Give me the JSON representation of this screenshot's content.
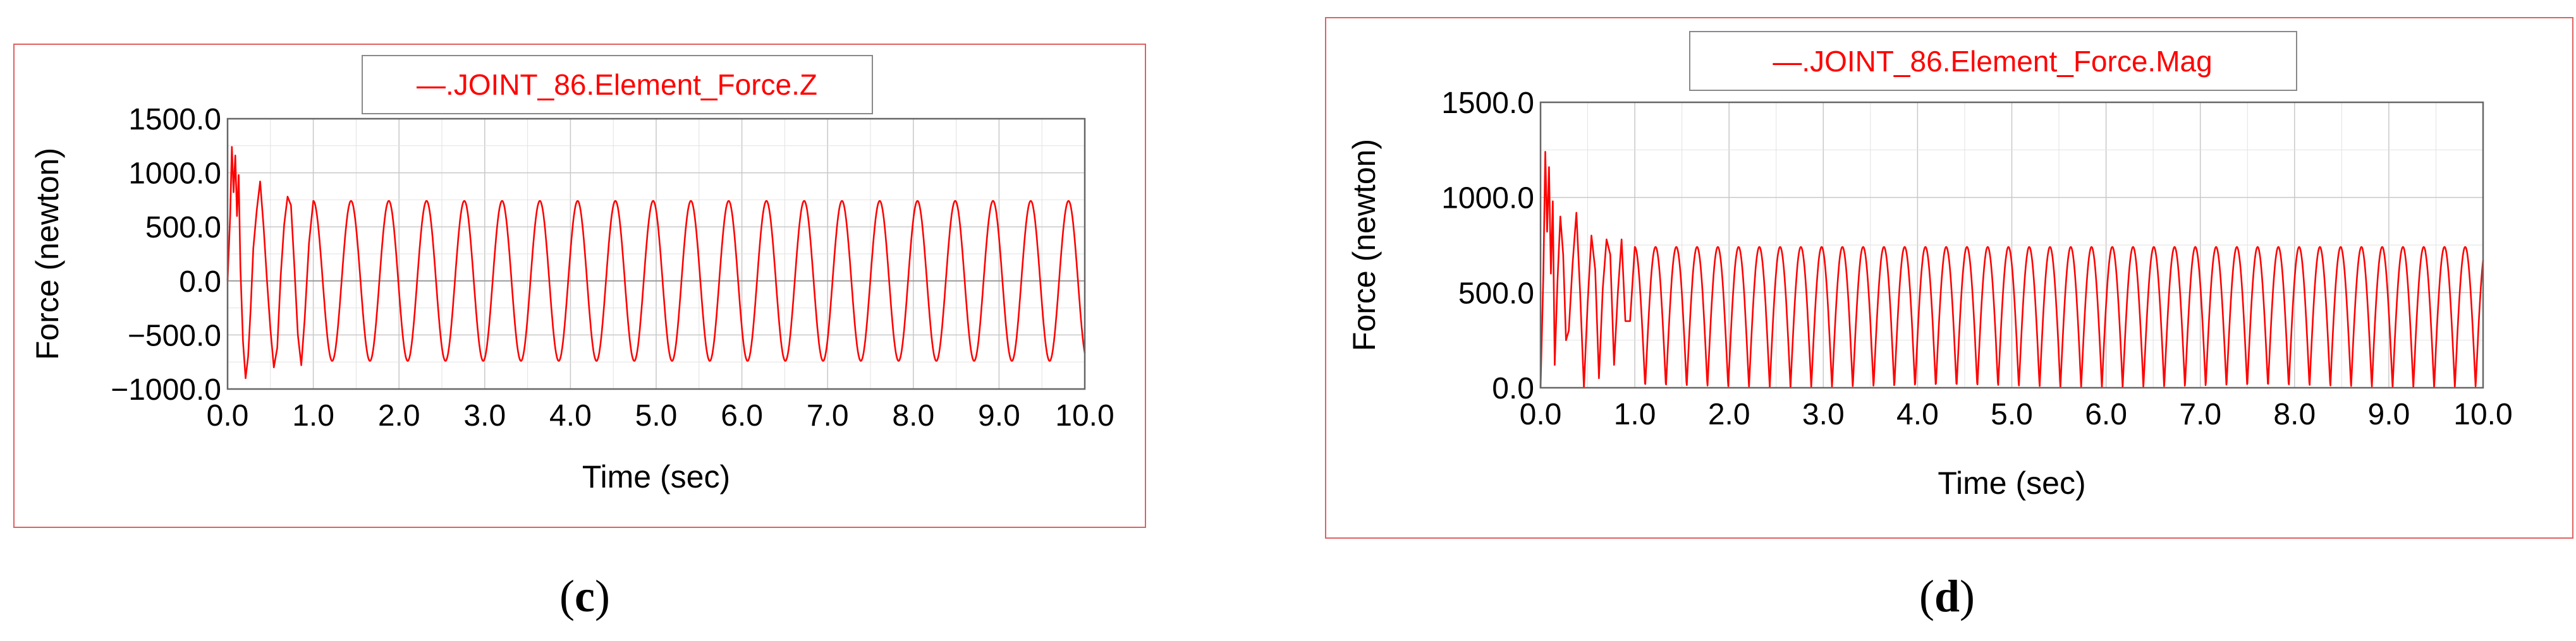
{
  "chart_data": [
    {
      "panel": "c",
      "type": "line",
      "legend": "—.JOINT_86.Element_Force.Z",
      "xlabel": "Time (sec)",
      "ylabel": "Force (newton)",
      "xlim": [
        0,
        10
      ],
      "ylim": [
        -1000,
        1500
      ],
      "xticks": [
        "0.0",
        "1.0",
        "2.0",
        "3.0",
        "4.0",
        "5.0",
        "6.0",
        "7.0",
        "8.0",
        "9.0",
        "10.0"
      ],
      "yticks": [
        "1500.0",
        "1000.0",
        "500.0",
        "0.0",
        "−500.0",
        "−1000.0"
      ],
      "grid": true,
      "legend_position": "top-center",
      "series": [
        {
          "color": "#ff0000",
          "steady_state": {
            "kind": "sine",
            "amplitude": 740,
            "frequency_hz": 2.27,
            "from_t": 1.0
          },
          "x": [
            0,
            0.03,
            0.05,
            0.07,
            0.09,
            0.11,
            0.13,
            0.15,
            0.18,
            0.21,
            0.24,
            0.27,
            0.3,
            0.34,
            0.38,
            0.42,
            0.46,
            0.5,
            0.54,
            0.58,
            0.62,
            0.66,
            0.7,
            0.74,
            0.78,
            0.82,
            0.86,
            0.9,
            0.95,
            1.0
          ],
          "y": [
            0,
            600,
            1240,
            820,
            1160,
            600,
            980,
            120,
            -560,
            -900,
            -700,
            -250,
            300,
            650,
            920,
            500,
            0,
            -450,
            -800,
            -620,
            50,
            520,
            780,
            700,
            120,
            -500,
            -780,
            -350,
            350,
            740
          ]
        }
      ],
      "caption": "(c)"
    },
    {
      "panel": "d",
      "type": "line",
      "legend": "—.JOINT_86.Element_Force.Mag",
      "xlabel": "Time (sec)",
      "ylabel": "Force (newton)",
      "xlim": [
        0,
        10
      ],
      "ylim": [
        0,
        1500
      ],
      "xticks": [
        "0.0",
        "1.0",
        "2.0",
        "3.0",
        "4.0",
        "5.0",
        "6.0",
        "7.0",
        "8.0",
        "9.0",
        "10.0"
      ],
      "yticks": [
        "1500.0",
        "1000.0",
        "500.0",
        "0.0"
      ],
      "grid": true,
      "legend_position": "top-center",
      "series": [
        {
          "color": "#ff0000",
          "steady_state": {
            "kind": "abs-sine",
            "amplitude": 740,
            "frequency_hz": 2.27,
            "from_t": 1.0
          },
          "x": [
            0,
            0.03,
            0.05,
            0.07,
            0.09,
            0.11,
            0.13,
            0.15,
            0.18,
            0.21,
            0.24,
            0.27,
            0.3,
            0.34,
            0.38,
            0.42,
            0.46,
            0.5,
            0.54,
            0.58,
            0.62,
            0.66,
            0.7,
            0.74,
            0.78,
            0.82,
            0.86,
            0.9,
            0.95,
            1.0
          ],
          "y": [
            0,
            600,
            1240,
            820,
            1160,
            600,
            980,
            120,
            560,
            900,
            700,
            250,
            300,
            650,
            920,
            500,
            0,
            450,
            800,
            620,
            50,
            520,
            780,
            700,
            120,
            500,
            780,
            350,
            350,
            740
          ]
        }
      ],
      "caption": "(d)"
    }
  ]
}
